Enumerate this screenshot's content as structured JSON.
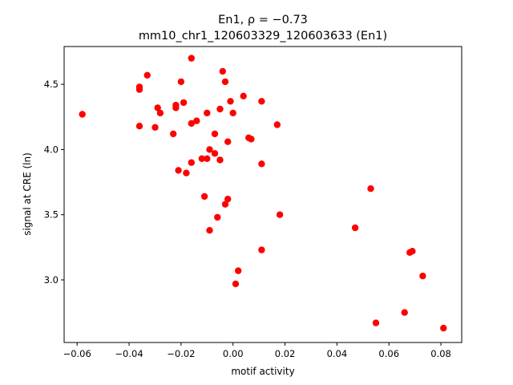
{
  "chart_data": {
    "type": "scatter",
    "title_line1": "En1, ρ = −0.73",
    "title_line2": "mm10_chr1_120603329_120603633 (En1)",
    "xlabel": "motif activity",
    "ylabel": "signal at CRE (ln)",
    "xlim": [
      -0.065,
      0.088
    ],
    "ylim": [
      2.52,
      4.79
    ],
    "xticks": [
      -0.06,
      -0.04,
      -0.02,
      0.0,
      0.02,
      0.04,
      0.06,
      0.08
    ],
    "xtick_labels": [
      "−0.06",
      "−0.04",
      "−0.02",
      "0.00",
      "0.02",
      "0.04",
      "0.06",
      "0.08"
    ],
    "yticks": [
      3.0,
      3.5,
      4.0,
      4.5
    ],
    "ytick_labels": [
      "3.0",
      "3.5",
      "4.0",
      "4.5"
    ],
    "marker_color": "#ff0000",
    "grid": false,
    "points": [
      {
        "x": -0.058,
        "y": 4.27
      },
      {
        "x": -0.036,
        "y": 4.48
      },
      {
        "x": -0.036,
        "y": 4.46
      },
      {
        "x": -0.036,
        "y": 4.18
      },
      {
        "x": -0.033,
        "y": 4.57
      },
      {
        "x": -0.03,
        "y": 4.17
      },
      {
        "x": -0.029,
        "y": 4.32
      },
      {
        "x": -0.028,
        "y": 4.28
      },
      {
        "x": -0.023,
        "y": 4.12
      },
      {
        "x": -0.022,
        "y": 4.34
      },
      {
        "x": -0.022,
        "y": 4.32
      },
      {
        "x": -0.021,
        "y": 3.84
      },
      {
        "x": -0.02,
        "y": 4.52
      },
      {
        "x": -0.019,
        "y": 4.36
      },
      {
        "x": -0.018,
        "y": 3.82
      },
      {
        "x": -0.016,
        "y": 4.7
      },
      {
        "x": -0.016,
        "y": 4.2
      },
      {
        "x": -0.016,
        "y": 3.9
      },
      {
        "x": -0.014,
        "y": 4.22
      },
      {
        "x": -0.012,
        "y": 3.93
      },
      {
        "x": -0.011,
        "y": 3.64
      },
      {
        "x": -0.01,
        "y": 4.28
      },
      {
        "x": -0.01,
        "y": 3.93
      },
      {
        "x": -0.009,
        "y": 4.0
      },
      {
        "x": -0.009,
        "y": 3.38
      },
      {
        "x": -0.007,
        "y": 4.12
      },
      {
        "x": -0.007,
        "y": 3.97
      },
      {
        "x": -0.006,
        "y": 3.48
      },
      {
        "x": -0.005,
        "y": 4.31
      },
      {
        "x": -0.005,
        "y": 3.92
      },
      {
        "x": -0.004,
        "y": 4.6
      },
      {
        "x": -0.003,
        "y": 4.52
      },
      {
        "x": -0.003,
        "y": 3.58
      },
      {
        "x": -0.002,
        "y": 4.06
      },
      {
        "x": -0.002,
        "y": 3.62
      },
      {
        "x": -0.001,
        "y": 4.37
      },
      {
        "x": 0.0,
        "y": 4.28
      },
      {
        "x": 0.001,
        "y": 2.97
      },
      {
        "x": 0.002,
        "y": 3.07
      },
      {
        "x": 0.004,
        "y": 4.41
      },
      {
        "x": 0.006,
        "y": 4.09
      },
      {
        "x": 0.007,
        "y": 4.08
      },
      {
        "x": 0.011,
        "y": 4.37
      },
      {
        "x": 0.011,
        "y": 3.89
      },
      {
        "x": 0.011,
        "y": 3.23
      },
      {
        "x": 0.017,
        "y": 4.19
      },
      {
        "x": 0.018,
        "y": 3.5
      },
      {
        "x": 0.047,
        "y": 3.4
      },
      {
        "x": 0.053,
        "y": 3.7
      },
      {
        "x": 0.055,
        "y": 2.67
      },
      {
        "x": 0.066,
        "y": 2.75
      },
      {
        "x": 0.068,
        "y": 3.21
      },
      {
        "x": 0.069,
        "y": 3.22
      },
      {
        "x": 0.073,
        "y": 3.03
      },
      {
        "x": 0.081,
        "y": 2.63
      }
    ]
  }
}
